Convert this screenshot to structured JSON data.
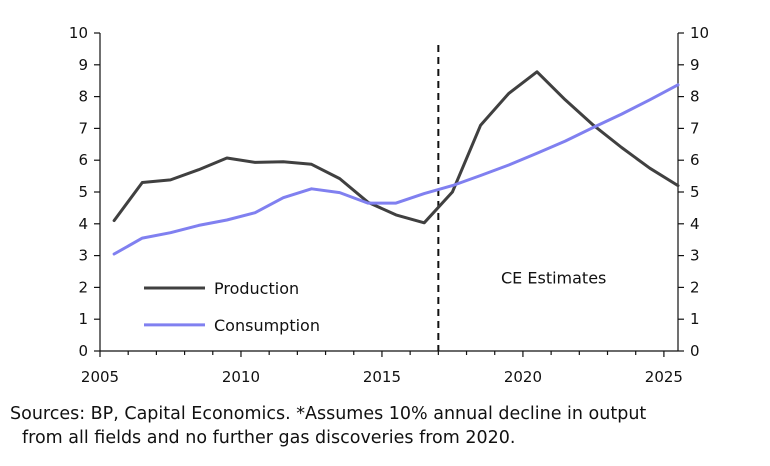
{
  "chart_data": {
    "type": "line",
    "title": "",
    "xlabel": "",
    "ylabel": "",
    "xlim": [
      2005,
      2025.5
    ],
    "ylim": [
      0,
      10
    ],
    "x_ticks": [
      2005,
      2010,
      2015,
      2020,
      2025
    ],
    "y_ticks_left": [
      0,
      1,
      2,
      3,
      4,
      5,
      6,
      7,
      8,
      9,
      10
    ],
    "y_ticks_right": [
      0,
      1,
      2,
      3,
      4,
      5,
      6,
      7,
      8,
      9,
      10
    ],
    "grid": false,
    "legend": {
      "placement": "bottom-left",
      "entries": [
        "Production",
        "Consumption"
      ]
    },
    "series": [
      {
        "name": "Production",
        "color": "#404040",
        "x": [
          2005.5,
          2006.5,
          2007.5,
          2008.5,
          2009.5,
          2010.5,
          2011.5,
          2012.5,
          2013.5,
          2014.5,
          2015.5,
          2016.5,
          2017.5,
          2018.5,
          2019.5,
          2020.5,
          2021.5,
          2022.5,
          2023.5,
          2024.5,
          2025.5
        ],
        "values": [
          4.1,
          5.3,
          5.38,
          5.7,
          6.07,
          5.93,
          5.95,
          5.87,
          5.42,
          4.68,
          4.28,
          4.03,
          5.0,
          7.1,
          8.1,
          8.78,
          7.9,
          7.1,
          6.4,
          5.75,
          5.2
        ]
      },
      {
        "name": "Consumption",
        "color": "#8080f0",
        "x": [
          2005.5,
          2006.5,
          2007.5,
          2008.5,
          2009.5,
          2010.5,
          2011.5,
          2012.5,
          2013.5,
          2014.5,
          2015.5,
          2016.5,
          2017.5,
          2018.5,
          2019.5,
          2020.5,
          2021.5,
          2022.5,
          2023.5,
          2024.5,
          2025.5
        ],
        "values": [
          3.05,
          3.55,
          3.72,
          3.95,
          4.12,
          4.35,
          4.82,
          5.1,
          4.98,
          4.65,
          4.65,
          4.95,
          5.2,
          5.52,
          5.85,
          6.22,
          6.6,
          7.03,
          7.45,
          7.9,
          8.37
        ]
      }
    ],
    "vertical_line": {
      "x": 2017,
      "style": "dashed"
    },
    "annotations": [
      {
        "text": "CE Estimates"
      }
    ]
  },
  "source_note": {
    "line1": "Sources: BP, Capital Economics. *Assumes 10% annual decline in output",
    "line2": "from all fields and no further gas discoveries from 2020."
  }
}
